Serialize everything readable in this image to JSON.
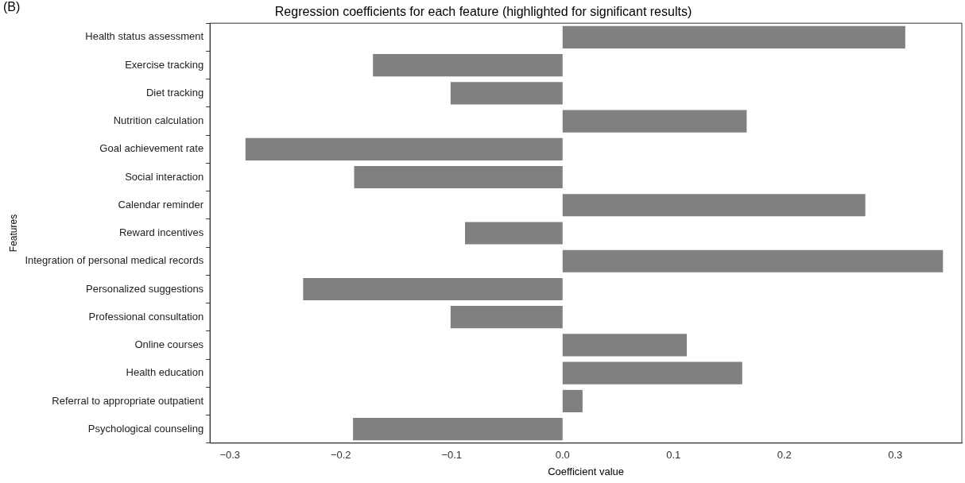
{
  "chart_data": {
    "type": "bar",
    "orientation": "horizontal",
    "title": "Regression coefficients for each feature (highlighted for significant results)",
    "xlabel": "Coefficient value",
    "ylabel": "Features",
    "annotations": [
      "(B)"
    ],
    "categories": [
      "Health status assessment",
      "Exercise tracking",
      "Diet tracking",
      "Nutrition calculation",
      "Goal achievement rate",
      "Social interaction",
      "Calendar reminder",
      "Reward incentives",
      "Integration of personal medical records",
      "Personalized suggestions",
      "Professional consultation",
      "Online courses",
      "Health education",
      "Referral to appropriate outpatient",
      "Psychological counseling"
    ],
    "values": [
      0.309,
      -0.171,
      -0.101,
      0.166,
      -0.286,
      -0.188,
      0.273,
      -0.088,
      0.343,
      -0.234,
      -0.101,
      0.112,
      0.162,
      0.018,
      -0.189
    ],
    "color": "#808080",
    "xlim": [
      -0.318,
      0.36
    ],
    "xticks": [
      {
        "value": -0.3,
        "label": "−0.3"
      },
      {
        "value": -0.2,
        "label": "−0.2"
      },
      {
        "value": -0.1,
        "label": "−0.1"
      },
      {
        "value": 0,
        "label": "0.0"
      },
      {
        "value": 0.1,
        "label": "0.1"
      },
      {
        "value": 0.2,
        "label": "0.2"
      },
      {
        "value": 0.3,
        "label": "0.3"
      }
    ],
    "grid": false,
    "legend": false
  }
}
